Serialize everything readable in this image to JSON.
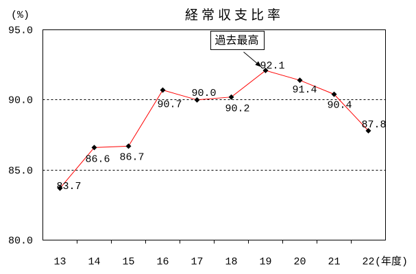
{
  "chart_data": {
    "type": "line",
    "title": "経常収支比率",
    "ylabel": "(%)",
    "xlabel": "(年度)",
    "categories": [
      "13",
      "14",
      "15",
      "16",
      "17",
      "18",
      "19",
      "20",
      "21",
      "22"
    ],
    "series": [
      {
        "values": [
          83.7,
          86.6,
          86.7,
          90.7,
          90.0,
          90.2,
          92.1,
          91.4,
          90.4,
          87.8
        ],
        "data_labels": [
          "83.7",
          "86.6",
          "86.7",
          "90.7",
          "90.0",
          "90.2",
          "92.1",
          "91.4",
          "90.4",
          "87.8"
        ],
        "line_color": "#ff0000",
        "marker_color": "#000000"
      }
    ],
    "ylim": [
      80,
      95
    ],
    "yticks": [
      95,
      90,
      85,
      80
    ],
    "ytick_labels": [
      "95.0",
      "90.0",
      "85.0",
      "80.0"
    ],
    "grid": true,
    "grid_color": "#000000",
    "annotations": [
      {
        "text": "過去最高",
        "target_index": 6
      }
    ]
  }
}
